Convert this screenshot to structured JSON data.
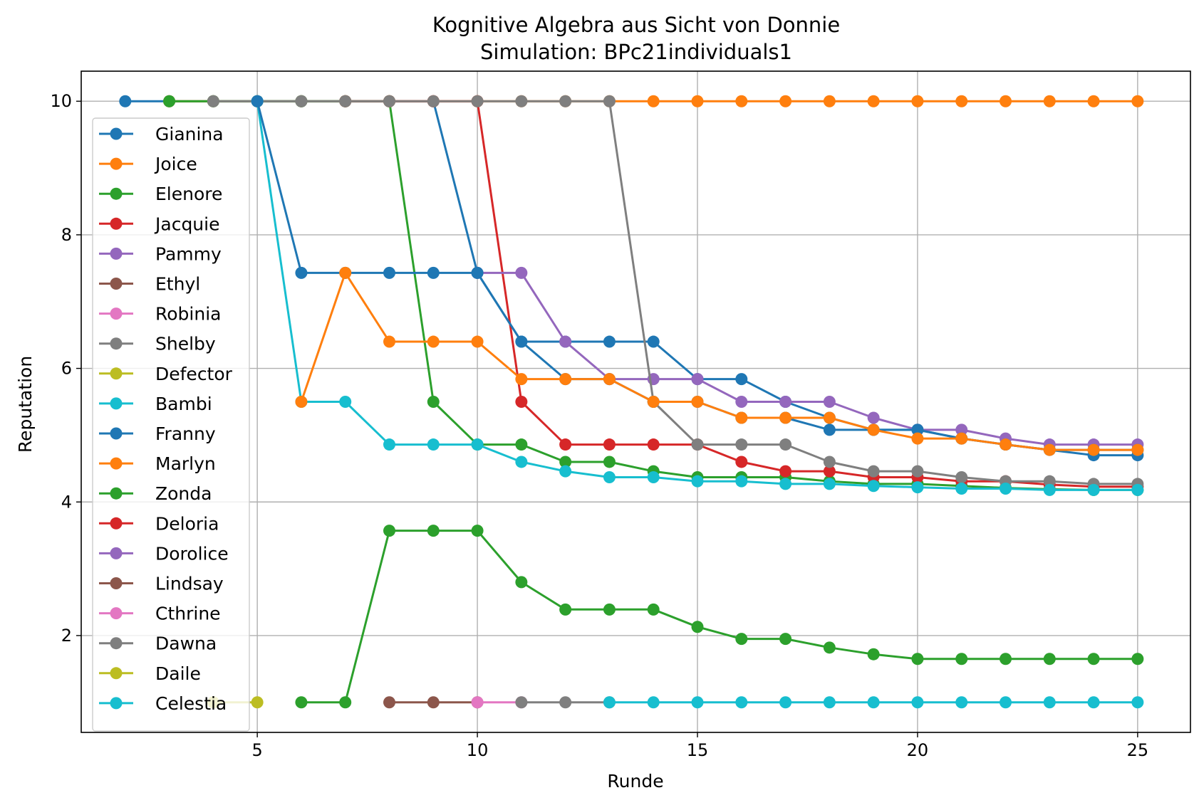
{
  "chart_data": {
    "type": "line",
    "title": "Kognitive Algebra aus Sicht von Donnie",
    "subtitle": "Simulation: BPc21individuals1",
    "xlabel": "Runde",
    "ylabel": "Reputation",
    "xlim": [
      1.0,
      26.2
    ],
    "ylim": [
      0.55,
      10.45
    ],
    "xticks": [
      5,
      10,
      15,
      20,
      25
    ],
    "yticks": [
      2,
      4,
      6,
      8,
      10
    ],
    "grid": true,
    "legend_position": "upper left",
    "series": [
      {
        "name": "Gianina",
        "color": "#1f77b4",
        "x": [
          2,
          3,
          4,
          5,
          6,
          7,
          8,
          9,
          10,
          11,
          12,
          13,
          14,
          15,
          16,
          17,
          18,
          19,
          20,
          21,
          22,
          23,
          24,
          25
        ],
        "y": [
          10,
          10,
          10,
          10,
          10,
          10,
          10,
          10,
          7.43,
          6.4,
          6.4,
          6.4,
          6.4,
          5.84,
          5.84,
          5.5,
          5.26,
          5.08,
          5.08,
          4.95,
          4.86,
          4.78,
          4.7,
          4.7
        ]
      },
      {
        "name": "Joice",
        "color": "#ff7f0e",
        "x": [
          3,
          4,
          5,
          6,
          7,
          8,
          9,
          10,
          11,
          12,
          13,
          14,
          15,
          16,
          17,
          18,
          19,
          20,
          21,
          22,
          23,
          24,
          25
        ],
        "y": [
          10,
          10,
          10,
          10,
          10,
          10,
          10,
          10,
          10,
          10,
          10,
          10,
          10,
          10,
          10,
          10,
          10,
          10,
          10,
          10,
          10,
          10,
          10
        ],
        "hidden_behind": true
      },
      {
        "name": "Elenore",
        "color": "#2ca02c",
        "x": [
          3,
          4,
          5,
          6,
          7,
          8,
          9,
          10,
          11,
          12,
          13,
          14,
          15,
          16,
          17,
          18,
          19,
          20,
          21,
          22,
          23,
          24,
          25
        ],
        "y": [
          10,
          10,
          10,
          10,
          10,
          10,
          5.5,
          4.86,
          4.86,
          4.6,
          4.6,
          4.46,
          4.37,
          4.37,
          4.37,
          4.31,
          4.27,
          4.27,
          4.24,
          4.21,
          4.19,
          4.18,
          4.18
        ]
      },
      {
        "name": "Jacquie",
        "color": "#d62728",
        "x": [
          7,
          8,
          9,
          10,
          11,
          12,
          13,
          14,
          15,
          16,
          17,
          18,
          19,
          20,
          21,
          22,
          23,
          24,
          25
        ],
        "y": [
          10,
          10,
          10,
          10,
          5.5,
          4.86,
          4.86,
          4.86,
          4.86,
          4.6,
          4.46,
          4.46,
          4.37,
          4.37,
          4.31,
          4.31,
          4.26,
          4.23,
          4.23
        ]
      },
      {
        "name": "Pammy",
        "color": "#9467bd",
        "x": [
          10,
          11,
          12,
          13,
          14,
          15,
          16,
          17,
          18,
          19,
          20,
          21,
          22,
          23,
          24,
          25
        ],
        "y": [
          7.43,
          7.43,
          6.4,
          5.84,
          5.84,
          5.84,
          5.5,
          5.5,
          5.5,
          5.26,
          5.08,
          5.08,
          4.95,
          4.86,
          4.86,
          4.86
        ]
      },
      {
        "name": "Ethyl",
        "color": "#8c564b",
        "x": [
          8,
          9,
          10
        ],
        "y": [
          1,
          1,
          1
        ]
      },
      {
        "name": "Robinia",
        "color": "#e377c2",
        "x": [
          10,
          11
        ],
        "y": [
          1,
          1
        ]
      },
      {
        "name": "Shelby",
        "color": "#7f7f7f",
        "x": [
          4,
          5,
          6,
          7,
          8,
          9,
          10,
          11,
          12,
          13,
          14,
          15,
          16,
          17,
          18,
          19,
          20,
          21,
          22,
          23,
          24,
          25
        ],
        "y": [
          10,
          10,
          10,
          10,
          10,
          10,
          10,
          10,
          10,
          10,
          5.5,
          4.86,
          4.86,
          4.86,
          4.6,
          4.46,
          4.46,
          4.37,
          4.31,
          4.31,
          4.27,
          4.27
        ]
      },
      {
        "name": "Defector",
        "color": "#bcbd22",
        "x": [
          4,
          5
        ],
        "y": [
          1,
          1
        ]
      },
      {
        "name": "Bambi",
        "color": "#17becf",
        "x": [
          5,
          6,
          7,
          8,
          9,
          10,
          11,
          12,
          13,
          14,
          15,
          16,
          17,
          18,
          19,
          20,
          21,
          22,
          23,
          24,
          25
        ],
        "y": [
          10,
          5.5,
          5.5,
          4.86,
          4.86,
          4.86,
          4.6,
          4.46,
          4.37,
          4.37,
          4.31,
          4.31,
          4.27,
          4.27,
          4.24,
          4.22,
          4.2,
          4.2,
          4.18,
          4.18,
          4.18
        ]
      },
      {
        "name": "Franny",
        "color": "#1f77b4",
        "x": [
          5,
          6,
          7,
          8,
          9,
          10,
          11,
          12,
          13,
          14,
          15,
          16,
          17,
          18,
          19,
          20,
          21,
          22,
          23,
          24,
          25
        ],
        "y": [
          10,
          7.43,
          7.43,
          7.43,
          7.43,
          7.43,
          6.4,
          5.84,
          5.84,
          5.5,
          5.5,
          5.26,
          5.26,
          5.08,
          5.08,
          5.08,
          4.95,
          4.86,
          4.78,
          4.78,
          4.78
        ]
      },
      {
        "name": "Marlyn",
        "color": "#ff7f0e",
        "x": [
          6,
          7,
          8,
          9,
          10,
          11,
          12,
          13,
          14,
          15,
          16,
          17,
          18,
          19,
          20,
          21,
          22,
          23,
          24,
          25
        ],
        "y": [
          5.5,
          7.43,
          6.4,
          6.4,
          6.4,
          5.84,
          5.84,
          5.84,
          5.5,
          5.5,
          5.26,
          5.26,
          5.26,
          5.08,
          4.95,
          4.95,
          4.86,
          4.78,
          4.78,
          4.78
        ]
      },
      {
        "name": "Zonda",
        "color": "#2ca02c",
        "x": [
          6,
          7,
          8,
          9,
          10,
          11,
          12,
          13,
          14,
          15,
          16,
          17,
          18,
          19,
          20,
          21,
          22,
          23,
          24,
          25
        ],
        "y": [
          1,
          1,
          3.57,
          3.57,
          3.57,
          2.8,
          2.39,
          2.39,
          2.39,
          2.13,
          1.95,
          1.95,
          1.82,
          1.72,
          1.65,
          1.65,
          1.65,
          1.65,
          1.65,
          1.65
        ]
      },
      {
        "name": "Deloria",
        "color": "#d62728",
        "x": [],
        "y": []
      },
      {
        "name": "Dorolice",
        "color": "#9467bd",
        "x": [],
        "y": []
      },
      {
        "name": "Lindsay",
        "color": "#8c564b",
        "x": [],
        "y": []
      },
      {
        "name": "Cthrine",
        "color": "#e377c2",
        "x": [],
        "y": []
      },
      {
        "name": "Dawna",
        "color": "#7f7f7f",
        "x": [
          11,
          12,
          13
        ],
        "y": [
          1,
          1,
          1
        ]
      },
      {
        "name": "Daile",
        "color": "#bcbd22",
        "x": [],
        "y": []
      },
      {
        "name": "Celestia",
        "color": "#17becf",
        "x": [
          13,
          14,
          15,
          16,
          17,
          18,
          19,
          20,
          21,
          22,
          23,
          24,
          25
        ],
        "y": [
          1,
          1,
          1,
          1,
          1,
          1,
          1,
          1,
          1,
          1,
          1,
          1,
          1
        ]
      }
    ]
  }
}
